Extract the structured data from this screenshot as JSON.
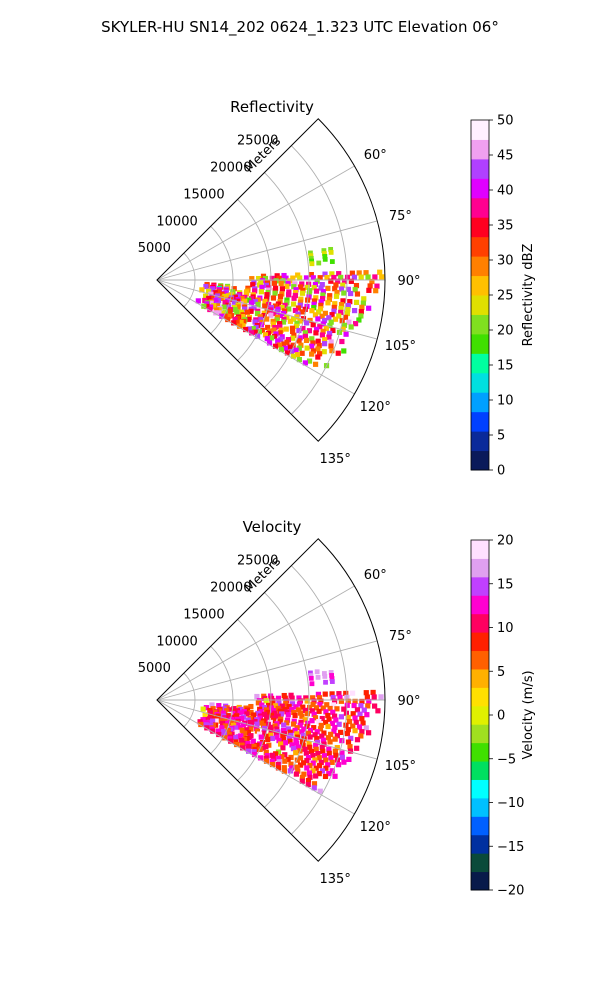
{
  "figure": {
    "suptitle": "SKYLER-HU  SN14_202  0624_1.323 UTC Elevation 06°"
  },
  "chart_data": [
    {
      "type": "heatmap",
      "projection": "polar-sector",
      "title": "Reflectivity",
      "range_axis_label": "Meters",
      "range_ticks": [
        5000,
        10000,
        15000,
        20000,
        25000
      ],
      "range_tick_labels": [
        "5000",
        "10000",
        "15000",
        "20000",
        "25000"
      ],
      "azimuth_ticks_deg": [
        60,
        75,
        90,
        105,
        120,
        135
      ],
      "azimuth_tick_labels": [
        "60°",
        "75°",
        "90°",
        "105°",
        "120°",
        "135°"
      ],
      "azimuth_range_deg": [
        45,
        135
      ],
      "range_max": 30000,
      "grid": true,
      "colorbar": {
        "label": "Reflectivity dBZ",
        "range": [
          0,
          50
        ],
        "ticks": [
          0,
          5,
          10,
          15,
          20,
          25,
          30,
          35,
          40,
          45,
          50
        ],
        "tick_labels": [
          "0",
          "5",
          "10",
          "15",
          "20",
          "25",
          "30",
          "35",
          "40",
          "45",
          "50"
        ],
        "colors": [
          "#0a1a5a",
          "#0a2a9a",
          "#0040ff",
          "#00a0ff",
          "#00e0e0",
          "#00ffa0",
          "#40e000",
          "#80e020",
          "#e0e000",
          "#ffc000",
          "#ff8000",
          "#ff4000",
          "#ff0020",
          "#ff0090",
          "#e000ff",
          "#b040ff",
          "#f0a0f0",
          "#fff0ff"
        ]
      },
      "echo_region": {
        "description_az_deg": [
          88,
          120
        ],
        "range_m": [
          6000,
          30000
        ],
        "dominant_values_dbz": [
          20,
          45
        ]
      }
    },
    {
      "type": "heatmap",
      "projection": "polar-sector",
      "title": "Velocity",
      "range_axis_label": "Meters",
      "range_ticks": [
        5000,
        10000,
        15000,
        20000,
        25000
      ],
      "range_tick_labels": [
        "5000",
        "10000",
        "15000",
        "20000",
        "25000"
      ],
      "azimuth_ticks_deg": [
        60,
        75,
        90,
        105,
        120,
        135
      ],
      "azimuth_tick_labels": [
        "60°",
        "75°",
        "90°",
        "105°",
        "120°",
        "135°"
      ],
      "azimuth_range_deg": [
        45,
        135
      ],
      "range_max": 30000,
      "grid": true,
      "colorbar": {
        "label": "Velocity (m/s)",
        "range": [
          -20,
          20
        ],
        "ticks": [
          -20,
          -15,
          -10,
          -5,
          0,
          5,
          10,
          15,
          20
        ],
        "tick_labels": [
          "−20",
          "−15",
          "−10",
          "−5",
          "0",
          "5",
          "10",
          "15",
          "20"
        ],
        "colors": [
          "#081a4a",
          "#0a4a3a",
          "#0030a0",
          "#0060ff",
          "#00c0ff",
          "#00ffff",
          "#00e060",
          "#40e000",
          "#a0e020",
          "#e0f000",
          "#ffe000",
          "#ffb000",
          "#ff6000",
          "#ff2000",
          "#ff0060",
          "#ff00d0",
          "#c040ff",
          "#e0a0f0",
          "#ffe0ff"
        ]
      },
      "echo_region": {
        "description_az_deg": [
          88,
          120
        ],
        "range_m": [
          6000,
          30000
        ],
        "dominant_values_ms": [
          5,
          15
        ]
      }
    }
  ]
}
